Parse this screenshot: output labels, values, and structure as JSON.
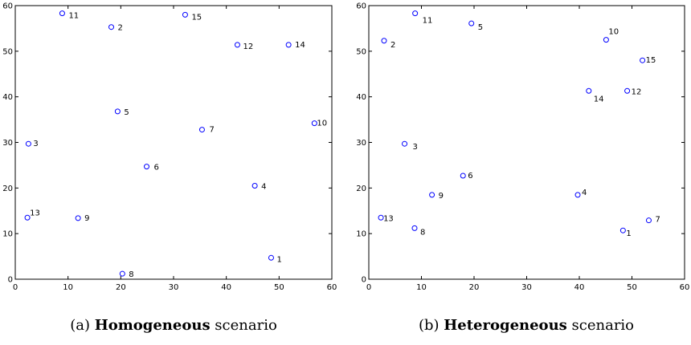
{
  "chart_data": [
    {
      "type": "scatter",
      "caption": {
        "prefix": "(a) ",
        "bold": "Homogeneous",
        "suffix": " scenario"
      },
      "xlim": [
        0,
        60
      ],
      "ylim": [
        0,
        60
      ],
      "xticks": [
        0,
        10,
        20,
        30,
        40,
        50,
        60
      ],
      "yticks": [
        0,
        10,
        20,
        30,
        40,
        50,
        60
      ],
      "grid": false,
      "marker_color": "#0000ff",
      "points": [
        {
          "label": "1",
          "x": 48.5,
          "y": 4.7
        },
        {
          "label": "2",
          "x": 18.2,
          "y": 55.3
        },
        {
          "label": "3",
          "x": 2.5,
          "y": 29.7
        },
        {
          "label": "4",
          "x": 45.4,
          "y": 20.5
        },
        {
          "label": "5",
          "x": 19.4,
          "y": 36.8
        },
        {
          "label": "6",
          "x": 24.9,
          "y": 24.7
        },
        {
          "label": "7",
          "x": 35.4,
          "y": 32.8
        },
        {
          "label": "8",
          "x": 20.3,
          "y": 1.2
        },
        {
          "label": "9",
          "x": 11.9,
          "y": 13.4
        },
        {
          "label": "10",
          "x": 56.7,
          "y": 34.2
        },
        {
          "label": "11",
          "x": 8.9,
          "y": 58.3
        },
        {
          "label": "12",
          "x": 42.1,
          "y": 51.4
        },
        {
          "label": "13",
          "x": 2.3,
          "y": 13.5
        },
        {
          "label": "14",
          "x": 51.8,
          "y": 51.4
        },
        {
          "label": "15",
          "x": 32.2,
          "y": 58.0
        }
      ]
    },
    {
      "type": "scatter",
      "caption": {
        "prefix": "(b) ",
        "bold": "Heterogeneous",
        "suffix": " scenario"
      },
      "xlim": [
        0,
        60
      ],
      "ylim": [
        0,
        60
      ],
      "xticks": [
        0,
        10,
        20,
        30,
        40,
        50,
        60
      ],
      "yticks": [
        0,
        10,
        20,
        30,
        40,
        50,
        60
      ],
      "grid": false,
      "marker_color": "#0000ff",
      "points": [
        {
          "label": "1",
          "x": 48.3,
          "y": 10.7
        },
        {
          "label": "2",
          "x": 2.9,
          "y": 52.3
        },
        {
          "label": "3",
          "x": 6.8,
          "y": 29.7
        },
        {
          "label": "4",
          "x": 39.7,
          "y": 18.5
        },
        {
          "label": "5",
          "x": 19.5,
          "y": 56.1
        },
        {
          "label": "6",
          "x": 17.9,
          "y": 22.7
        },
        {
          "label": "7",
          "x": 53.2,
          "y": 12.9
        },
        {
          "label": "8",
          "x": 8.7,
          "y": 11.2
        },
        {
          "label": "9",
          "x": 12.0,
          "y": 18.5
        },
        {
          "label": "10",
          "x": 45.1,
          "y": 52.5
        },
        {
          "label": "11",
          "x": 8.8,
          "y": 58.3
        },
        {
          "label": "12",
          "x": 49.1,
          "y": 41.3
        },
        {
          "label": "13",
          "x": 2.3,
          "y": 13.5
        },
        {
          "label": "14",
          "x": 41.8,
          "y": 41.3
        },
        {
          "label": "15",
          "x": 52.0,
          "y": 48.0
        }
      ]
    }
  ]
}
